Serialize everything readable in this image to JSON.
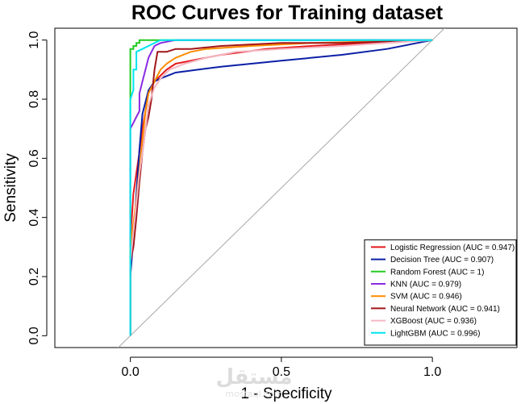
{
  "chart_data": {
    "type": "line",
    "title": "ROC Curves for Training dataset",
    "xlabel": "1 - Specificity",
    "ylabel": "Sensitivity",
    "xlim": [
      -0.25,
      1.28
    ],
    "ylim": [
      -0.04,
      1.04
    ],
    "x_ticks": [
      0.0,
      0.5,
      1.0
    ],
    "x_tick_labels": [
      "0.0",
      "0.5",
      "1.0"
    ],
    "y_ticks": [
      0.0,
      0.2,
      0.4,
      0.6,
      0.8,
      1.0
    ],
    "y_tick_labels": [
      "0.0",
      "0.2",
      "0.4",
      "0.6",
      "0.8",
      "1.0"
    ],
    "diagonal_color": "#a6a6a6",
    "diagonal": {
      "x": [
        -0.05,
        1.05
      ],
      "y": [
        -0.05,
        1.05
      ]
    },
    "legend_position": "bottom-right",
    "series": [
      {
        "name": "Logistic Regression (AUC = 0.947)",
        "color": "#e41a1c",
        "points": [
          [
            0,
            0
          ],
          [
            0,
            0.33
          ],
          [
            0.005,
            0.4
          ],
          [
            0.01,
            0.48
          ],
          [
            0.02,
            0.55
          ],
          [
            0.03,
            0.62
          ],
          [
            0.04,
            0.7
          ],
          [
            0.05,
            0.76
          ],
          [
            0.06,
            0.82
          ],
          [
            0.08,
            0.86
          ],
          [
            0.1,
            0.88
          ],
          [
            0.12,
            0.9
          ],
          [
            0.15,
            0.92
          ],
          [
            0.2,
            0.93
          ],
          [
            0.3,
            0.95
          ],
          [
            0.45,
            0.97
          ],
          [
            0.6,
            0.98
          ],
          [
            0.8,
            0.99
          ],
          [
            1,
            1
          ]
        ]
      },
      {
        "name": "Decision Tree (AUC = 0.907)",
        "color": "#0b1fa6",
        "points": [
          [
            0,
            0
          ],
          [
            0,
            0.2
          ],
          [
            0.01,
            0.33
          ],
          [
            0.02,
            0.48
          ],
          [
            0.03,
            0.63
          ],
          [
            0.04,
            0.75
          ],
          [
            0.06,
            0.83
          ],
          [
            0.08,
            0.86
          ],
          [
            0.1,
            0.87
          ],
          [
            0.15,
            0.89
          ],
          [
            0.3,
            0.91
          ],
          [
            0.5,
            0.93
          ],
          [
            0.7,
            0.95
          ],
          [
            0.85,
            0.97
          ],
          [
            0.95,
            0.99
          ],
          [
            1,
            1
          ]
        ]
      },
      {
        "name": "Random Forest (AUC = 1)",
        "color": "#22cc22",
        "points": [
          [
            0,
            0
          ],
          [
            0,
            0.97
          ],
          [
            0.01,
            0.97
          ],
          [
            0.01,
            0.98
          ],
          [
            0.02,
            0.98
          ],
          [
            0.02,
            0.99
          ],
          [
            0.03,
            0.99
          ],
          [
            0.03,
            1
          ],
          [
            0.05,
            1
          ],
          [
            1,
            1
          ]
        ]
      },
      {
        "name": "KNN (AUC = 0.979)",
        "color": "#8a2be2",
        "points": [
          [
            0,
            0
          ],
          [
            0,
            0.7
          ],
          [
            0.01,
            0.72
          ],
          [
            0.02,
            0.74
          ],
          [
            0.03,
            0.76
          ],
          [
            0.03,
            0.82
          ],
          [
            0.04,
            0.86
          ],
          [
            0.05,
            0.9
          ],
          [
            0.06,
            0.94
          ],
          [
            0.07,
            0.96
          ],
          [
            0.08,
            0.98
          ],
          [
            0.1,
            0.99
          ],
          [
            0.15,
            1
          ],
          [
            1,
            1
          ]
        ]
      },
      {
        "name": "SVM (AUC = 0.946)",
        "color": "#ff8c00",
        "points": [
          [
            0,
            0
          ],
          [
            0,
            0.3
          ],
          [
            0.01,
            0.38
          ],
          [
            0.02,
            0.46
          ],
          [
            0.03,
            0.56
          ],
          [
            0.04,
            0.66
          ],
          [
            0.05,
            0.76
          ],
          [
            0.06,
            0.82
          ],
          [
            0.08,
            0.86
          ],
          [
            0.1,
            0.9
          ],
          [
            0.12,
            0.92
          ],
          [
            0.15,
            0.94
          ],
          [
            0.2,
            0.96
          ],
          [
            0.25,
            0.97
          ],
          [
            0.4,
            0.98
          ],
          [
            0.6,
            0.99
          ],
          [
            1,
            1
          ]
        ]
      },
      {
        "name": "Neural Network (AUC = 0.941)",
        "color": "#a0161b",
        "points": [
          [
            0,
            0
          ],
          [
            0,
            0.25
          ],
          [
            0.01,
            0.3
          ],
          [
            0.02,
            0.4
          ],
          [
            0.03,
            0.52
          ],
          [
            0.04,
            0.62
          ],
          [
            0.05,
            0.7
          ],
          [
            0.06,
            0.74
          ],
          [
            0.07,
            0.8
          ],
          [
            0.08,
            0.9
          ],
          [
            0.09,
            0.96
          ],
          [
            0.12,
            0.96
          ],
          [
            0.15,
            0.97
          ],
          [
            0.2,
            0.97
          ],
          [
            0.3,
            0.98
          ],
          [
            0.5,
            0.99
          ],
          [
            0.7,
            0.99
          ],
          [
            1,
            1
          ]
        ]
      },
      {
        "name": "XGBoost (AUC = 0.936)",
        "color": "#f4b6c2",
        "points": [
          [
            0,
            0
          ],
          [
            0,
            0.25
          ],
          [
            0.01,
            0.35
          ],
          [
            0.02,
            0.45
          ],
          [
            0.03,
            0.55
          ],
          [
            0.04,
            0.62
          ],
          [
            0.05,
            0.7
          ],
          [
            0.06,
            0.78
          ],
          [
            0.08,
            0.84
          ],
          [
            0.1,
            0.87
          ],
          [
            0.13,
            0.9
          ],
          [
            0.18,
            0.92
          ],
          [
            0.25,
            0.94
          ],
          [
            0.35,
            0.96
          ],
          [
            0.5,
            0.97
          ],
          [
            0.7,
            0.98
          ],
          [
            0.85,
            0.99
          ],
          [
            1,
            1
          ]
        ]
      },
      {
        "name": "LightGBM (AUC = 0.996)",
        "color": "#00e5ee",
        "points": [
          [
            0,
            0
          ],
          [
            0,
            0.8
          ],
          [
            0.01,
            0.83
          ],
          [
            0.01,
            0.9
          ],
          [
            0.02,
            0.9
          ],
          [
            0.02,
            0.96
          ],
          [
            0.04,
            0.97
          ],
          [
            0.06,
            0.98
          ],
          [
            0.08,
            0.99
          ],
          [
            0.1,
            1
          ],
          [
            1,
            1
          ]
        ]
      }
    ]
  },
  "watermark": {
    "text": "مستقل",
    "subtext": "mostaql.com",
    "color": "#dcdcdc"
  }
}
